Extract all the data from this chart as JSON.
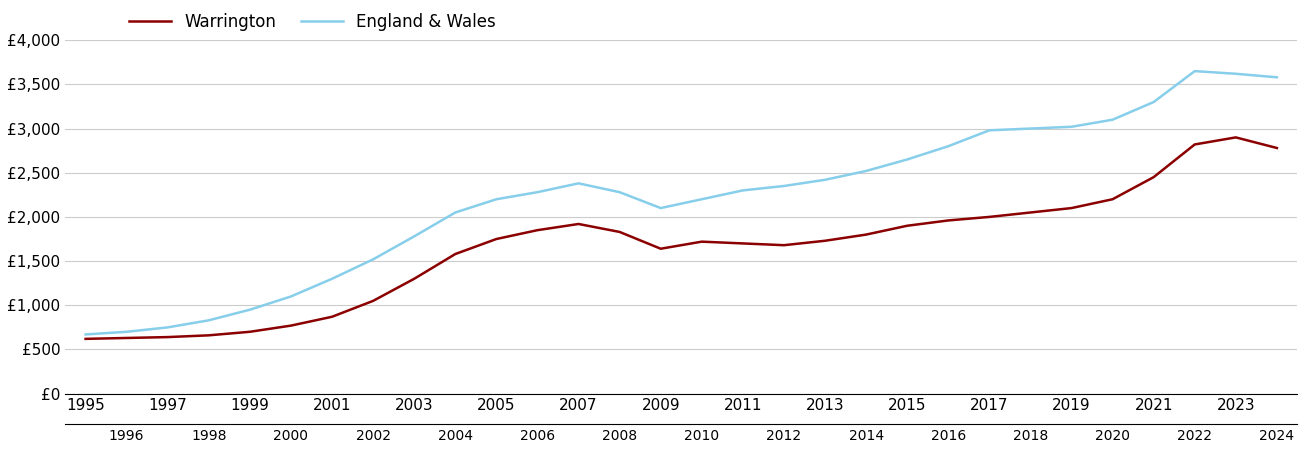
{
  "warrington_years": [
    1995,
    1996,
    1997,
    1998,
    1999,
    2000,
    2001,
    2002,
    2003,
    2004,
    2005,
    2006,
    2007,
    2008,
    2009,
    2010,
    2011,
    2012,
    2013,
    2014,
    2015,
    2016,
    2017,
    2018,
    2019,
    2020,
    2021,
    2022,
    2023,
    2024
  ],
  "warrington_values": [
    620,
    630,
    640,
    660,
    700,
    770,
    870,
    1050,
    1300,
    1580,
    1750,
    1850,
    1920,
    1830,
    1640,
    1720,
    1700,
    1680,
    1730,
    1800,
    1900,
    1960,
    2000,
    2050,
    2100,
    2200,
    2450,
    2820,
    2900,
    2780
  ],
  "england_years": [
    1995,
    1996,
    1997,
    1998,
    1999,
    2000,
    2001,
    2002,
    2003,
    2004,
    2005,
    2006,
    2007,
    2008,
    2009,
    2010,
    2011,
    2012,
    2013,
    2014,
    2015,
    2016,
    2017,
    2018,
    2019,
    2020,
    2021,
    2022,
    2023,
    2024
  ],
  "england_values": [
    670,
    700,
    750,
    830,
    950,
    1100,
    1300,
    1520,
    1780,
    2050,
    2200,
    2280,
    2380,
    2280,
    2100,
    2200,
    2300,
    2350,
    2420,
    2520,
    2650,
    2800,
    2980,
    3000,
    3020,
    3100,
    3300,
    3650,
    3620,
    3580
  ],
  "warrington_color": "#8B0000",
  "england_color": "#87CEEB",
  "line_width": 1.8,
  "ylim": [
    0,
    4000
  ],
  "yticks": [
    0,
    500,
    1000,
    1500,
    2000,
    2500,
    3000,
    3500,
    4000
  ],
  "ytick_labels": [
    "£0",
    "£500",
    "£1,000",
    "£1,500",
    "£2,000",
    "£2,500",
    "£3,000",
    "£3,500",
    "£4,000"
  ],
  "xlim_min": 1994.5,
  "xlim_max": 2024.5,
  "odd_years": [
    1995,
    1997,
    1999,
    2001,
    2003,
    2005,
    2007,
    2009,
    2011,
    2013,
    2015,
    2017,
    2019,
    2021,
    2023
  ],
  "even_years": [
    1996,
    1998,
    2000,
    2002,
    2004,
    2006,
    2008,
    2010,
    2012,
    2014,
    2016,
    2018,
    2020,
    2022,
    2024
  ],
  "legend_warrington": "Warrington",
  "legend_england": "England & Wales",
  "background_color": "#ffffff",
  "grid_color": "#cccccc",
  "tick_fontsize": 11,
  "legend_fontsize": 12
}
